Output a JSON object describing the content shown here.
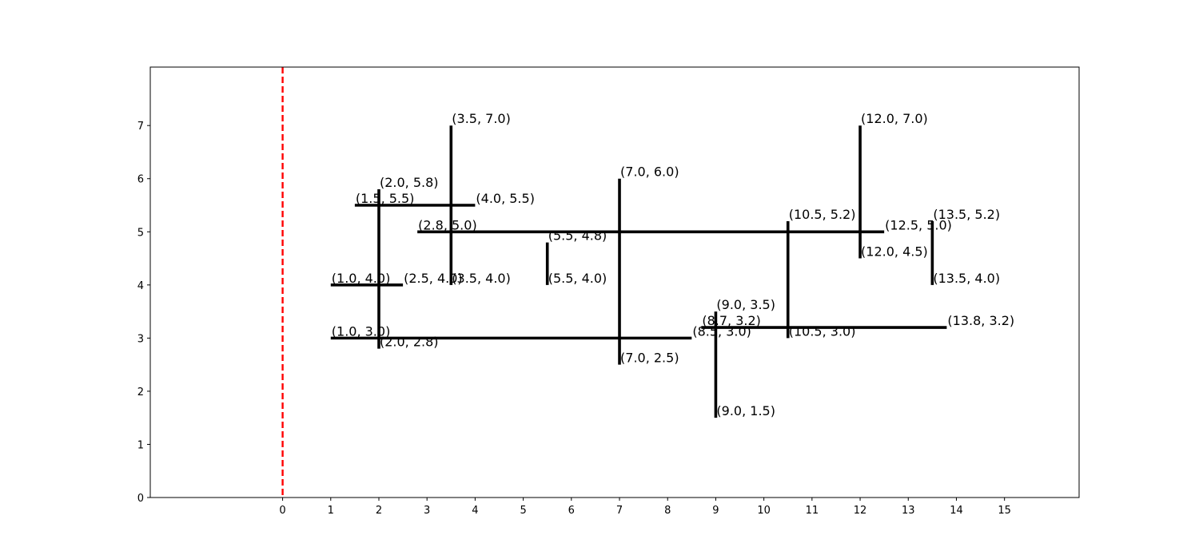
{
  "chart_data": {
    "type": "line",
    "title": "",
    "xlabel": "",
    "ylabel": "",
    "xlim": [
      -2.75,
      16.55
    ],
    "ylim": [
      0,
      8.1
    ],
    "xticks": [
      0,
      1,
      2,
      3,
      4,
      5,
      6,
      7,
      8,
      9,
      10,
      11,
      12,
      13,
      14,
      15
    ],
    "yticks": [
      0,
      1,
      2,
      3,
      4,
      5,
      6,
      7
    ],
    "grid": false,
    "reference_line": {
      "x": 0,
      "style": "dashed",
      "color": "#ff0000"
    },
    "segment_color": "#000000",
    "segments": [
      {
        "start": [
          3.5,
          7.0
        ],
        "end": [
          3.5,
          4.0
        ]
      },
      {
        "start": [
          12.0,
          7.0
        ],
        "end": [
          12.0,
          4.5
        ]
      },
      {
        "start": [
          2.0,
          5.8
        ],
        "end": [
          2.0,
          2.8
        ]
      },
      {
        "start": [
          7.0,
          6.0
        ],
        "end": [
          7.0,
          2.5
        ]
      },
      {
        "start": [
          1.5,
          5.5
        ],
        "end": [
          4.0,
          5.5
        ]
      },
      {
        "start": [
          2.8,
          5.0
        ],
        "end": [
          12.5,
          5.0
        ]
      },
      {
        "start": [
          5.5,
          4.8
        ],
        "end": [
          5.5,
          4.0
        ]
      },
      {
        "start": [
          10.5,
          5.2
        ],
        "end": [
          10.5,
          3.0
        ]
      },
      {
        "start": [
          13.5,
          5.2
        ],
        "end": [
          13.5,
          4.0
        ]
      },
      {
        "start": [
          1.0,
          4.0
        ],
        "end": [
          2.5,
          4.0
        ]
      },
      {
        "start": [
          9.0,
          3.5
        ],
        "end": [
          9.0,
          1.5
        ]
      },
      {
        "start": [
          8.7,
          3.2
        ],
        "end": [
          13.8,
          3.2
        ]
      },
      {
        "start": [
          1.0,
          3.0
        ],
        "end": [
          8.5,
          3.0
        ]
      }
    ],
    "point_labels": [
      {
        "x": 3.5,
        "y": 7.0,
        "text": "(3.5, 7.0)"
      },
      {
        "x": 12.0,
        "y": 7.0,
        "text": "(12.0, 7.0)"
      },
      {
        "x": 2.0,
        "y": 5.8,
        "text": "(2.0, 5.8)"
      },
      {
        "x": 7.0,
        "y": 6.0,
        "text": "(7.0, 6.0)"
      },
      {
        "x": 1.5,
        "y": 5.5,
        "text": "(1.5, 5.5)"
      },
      {
        "x": 4.0,
        "y": 5.5,
        "text": "(4.0, 5.5)"
      },
      {
        "x": 2.8,
        "y": 5.0,
        "text": "(2.8, 5.0)"
      },
      {
        "x": 5.5,
        "y": 4.8,
        "text": "(5.5, 4.8)"
      },
      {
        "x": 10.5,
        "y": 5.2,
        "text": "(10.5, 5.2)"
      },
      {
        "x": 12.5,
        "y": 5.0,
        "text": "(12.5, 5.0)"
      },
      {
        "x": 13.5,
        "y": 5.2,
        "text": "(13.5, 5.2)"
      },
      {
        "x": 12.0,
        "y": 4.5,
        "text": "(12.0, 4.5)"
      },
      {
        "x": 1.0,
        "y": 4.0,
        "text": "(1.0, 4.0)"
      },
      {
        "x": 2.5,
        "y": 4.0,
        "text": "(2.5, 4.0)"
      },
      {
        "x": 3.5,
        "y": 4.0,
        "text": "(3.5, 4.0)"
      },
      {
        "x": 5.5,
        "y": 4.0,
        "text": "(5.5, 4.0)"
      },
      {
        "x": 13.5,
        "y": 4.0,
        "text": "(13.5, 4.0)"
      },
      {
        "x": 9.0,
        "y": 3.5,
        "text": "(9.0, 3.5)"
      },
      {
        "x": 8.7,
        "y": 3.2,
        "text": "(8.7, 3.2)"
      },
      {
        "x": 13.8,
        "y": 3.2,
        "text": "(13.8, 3.2)"
      },
      {
        "x": 1.0,
        "y": 3.0,
        "text": "(1.0, 3.0)"
      },
      {
        "x": 8.5,
        "y": 3.0,
        "text": "(8.5, 3.0)"
      },
      {
        "x": 10.5,
        "y": 3.0,
        "text": "(10.5, 3.0)"
      },
      {
        "x": 2.0,
        "y": 2.8,
        "text": "(2.0, 2.8)"
      },
      {
        "x": 7.0,
        "y": 2.5,
        "text": "(7.0, 2.5)"
      },
      {
        "x": 9.0,
        "y": 1.5,
        "text": "(9.0, 1.5)"
      }
    ]
  }
}
